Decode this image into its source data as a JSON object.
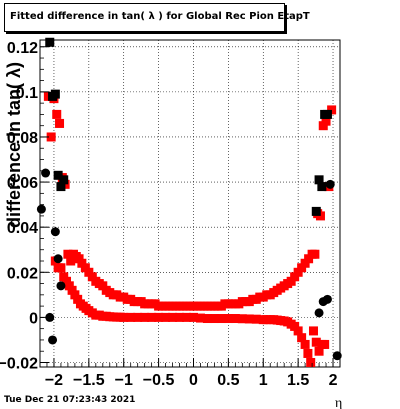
{
  "chart_data": {
    "type": "scatter",
    "title": "Fitted difference in tan( λ ) for Global Rec Pion EtapT",
    "xlabel": "η",
    "ylabel": "difference in tan( λ)",
    "xlim": [
      -2.2,
      2.1
    ],
    "ylim": [
      -0.022,
      0.123
    ],
    "x_ticks": [
      "−2",
      "−1.5",
      "−1",
      "−0.5",
      "0",
      "0.5",
      "1",
      "1.5",
      "2"
    ],
    "y_ticks": [
      "−0.02",
      "0",
      "0.02",
      "0.04",
      "0.06",
      "0.08",
      "0.1",
      "0.12"
    ],
    "grid": true,
    "series": [
      {
        "color": "#ff0000",
        "marker": "square",
        "x": [
          -2.08,
          -2.04,
          -2.0,
          -1.96,
          -1.92,
          -1.88,
          -1.84,
          -1.8,
          -1.76,
          -1.72,
          -1.68,
          -1.64,
          -1.6,
          -1.55,
          -1.5,
          -1.45,
          -1.4,
          -1.35,
          -1.3,
          -1.25,
          -1.2,
          -1.15,
          -1.1,
          -1.05,
          -1.0,
          -0.95,
          -0.9,
          -0.85,
          -0.8,
          -0.75,
          -0.7,
          -0.65,
          -0.6,
          -0.55,
          -0.5,
          -0.45,
          -0.4,
          -0.35,
          -0.3,
          -0.25,
          -0.2,
          -0.15,
          -0.1,
          -0.05,
          0.0,
          0.05,
          0.1,
          0.15,
          0.2,
          0.25,
          0.3,
          0.35,
          0.4,
          0.45,
          0.5,
          0.55,
          0.6,
          0.65,
          0.7,
          0.75,
          0.8,
          0.85,
          0.9,
          0.95,
          1.0,
          1.05,
          1.1,
          1.15,
          1.2,
          1.25,
          1.3,
          1.35,
          1.4,
          1.45,
          1.5,
          1.55,
          1.6,
          1.65,
          1.7,
          1.74,
          1.78,
          1.82,
          1.86,
          1.9,
          1.94,
          1.98
        ],
        "y": [
          0.098,
          0.08,
          0.097,
          0.09,
          0.086,
          0.062,
          0.059,
          0.028,
          0.025,
          0.028,
          0.027,
          0.026,
          0.024,
          0.022,
          0.02,
          0.018,
          0.016,
          0.015,
          0.014,
          0.012,
          0.011,
          0.01,
          0.01,
          0.009,
          0.009,
          0.008,
          0.008,
          0.007,
          0.007,
          0.007,
          0.006,
          0.006,
          0.006,
          0.006,
          0.005,
          0.005,
          0.005,
          0.005,
          0.005,
          0.005,
          0.005,
          0.005,
          0.005,
          0.005,
          0.005,
          0.005,
          0.005,
          0.005,
          0.005,
          0.005,
          0.005,
          0.005,
          0.005,
          0.006,
          0.006,
          0.006,
          0.006,
          0.006,
          0.007,
          0.007,
          0.007,
          0.008,
          0.008,
          0.009,
          0.009,
          0.01,
          0.01,
          0.011,
          0.012,
          0.013,
          0.014,
          0.015,
          0.016,
          0.018,
          0.02,
          0.022,
          0.024,
          0.026,
          0.028,
          0.028,
          0.046,
          0.045,
          0.085,
          0.087,
          0.058,
          0.092
        ]
      },
      {
        "color": "#ff0000",
        "marker": "square",
        "x": [
          -1.98,
          -1.94,
          -1.9,
          -1.86,
          -1.82,
          -1.78,
          -1.74,
          -1.7,
          -1.66,
          -1.62,
          -1.58,
          -1.54,
          -1.5,
          -1.45,
          -1.4,
          -1.35,
          -1.3,
          -1.25,
          -1.2,
          -1.15,
          -1.1,
          -1.05,
          -1.0,
          -0.9,
          -0.8,
          -0.7,
          -0.6,
          -0.5,
          -0.4,
          -0.3,
          -0.2,
          -0.1,
          0.0,
          0.1,
          0.2,
          0.3,
          0.4,
          0.5,
          0.6,
          0.7,
          0.8,
          0.9,
          1.0,
          1.05,
          1.1,
          1.15,
          1.2,
          1.25,
          1.3,
          1.35,
          1.4,
          1.45,
          1.5,
          1.55,
          1.6,
          1.64,
          1.68,
          1.72,
          1.76,
          1.8,
          1.84,
          1.88
        ],
        "y": [
          0.025,
          0.022,
          0.022,
          0.018,
          0.016,
          0.014,
          0.012,
          0.01,
          0.008,
          0.006,
          0.005,
          0.004,
          0.003,
          0.002,
          0.001,
          0.001,
          0.0005,
          0.0005,
          0.0003,
          0.0002,
          0.0001,
          0.0001,
          0.0,
          0.0,
          0.0,
          0.0,
          0.0,
          0.0,
          0.0,
          0.0,
          0.0,
          0.0,
          0.0,
          -0.0003,
          -0.0005,
          -0.0005,
          -0.0005,
          -0.0005,
          -0.0005,
          -0.0006,
          -0.0007,
          -0.0008,
          -0.001,
          -0.001,
          -0.001,
          -0.001,
          -0.0012,
          -0.0014,
          -0.0016,
          -0.002,
          -0.003,
          -0.004,
          -0.006,
          -0.009,
          -0.012,
          -0.016,
          -0.02,
          -0.006,
          -0.011,
          -0.015,
          -0.012,
          -0.012
        ]
      },
      {
        "color": "#000000",
        "marker": "square",
        "x": [
          -2.06,
          -2.02,
          -1.98,
          -1.94,
          -1.9,
          -1.86,
          1.76,
          1.8,
          1.84,
          1.88,
          1.92
        ],
        "y": [
          0.122,
          0.098,
          0.099,
          0.063,
          0.058,
          0.061,
          0.047,
          0.061,
          0.058,
          0.09,
          0.09
        ]
      },
      {
        "color": "#000000",
        "marker": "circle",
        "x": [
          -2.18,
          -2.12,
          -2.06,
          -2.02,
          -1.98,
          -1.94,
          -1.9,
          1.8,
          1.86,
          1.92,
          1.96,
          2.06
        ],
        "y": [
          0.048,
          0.064,
          0.0,
          -0.01,
          0.038,
          0.026,
          0.014,
          0.002,
          0.007,
          0.008,
          0.059,
          -0.017
        ]
      }
    ]
  },
  "datestamp": "Tue Dec 21 07:23:43 2021"
}
